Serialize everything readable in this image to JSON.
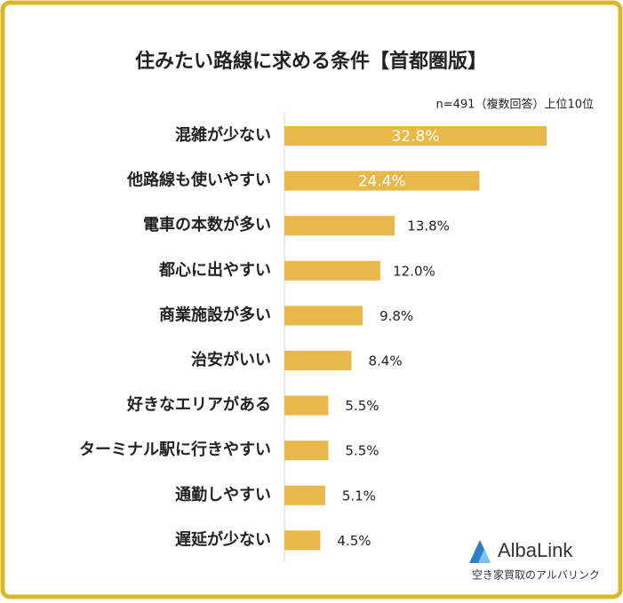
{
  "chart_data": {
    "type": "bar",
    "orientation": "horizontal",
    "title": "住みたい路線に求める条件【首都圏版】",
    "note": "n=491（複数回答）上位10位",
    "categories": [
      "混雑が少ない",
      "他路線も使いやすい",
      "電車の本数が多い",
      "都心に出やすい",
      "商業施設が多い",
      "治安がいい",
      "好きなエリアがある",
      "ターミナル駅に行きやすい",
      "通勤しやすい",
      "遅延が少ない"
    ],
    "values": [
      32.8,
      24.4,
      13.8,
      12.0,
      9.8,
      8.4,
      5.5,
      5.5,
      5.1,
      4.5
    ],
    "value_labels": [
      "32.8%",
      "24.4%",
      "13.8%",
      "12.0%",
      "9.8%",
      "8.4%",
      "5.5%",
      "5.5%",
      "5.1%",
      "4.5%"
    ],
    "color": "#e8b84a"
  },
  "logo": {
    "name": "AlbaLink",
    "tagline": "空き家買取のアルバリンク"
  }
}
